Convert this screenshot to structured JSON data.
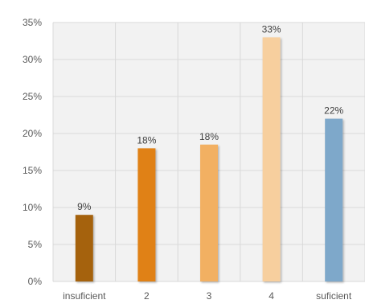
{
  "chart_data": {
    "type": "bar",
    "title": "",
    "xlabel": "",
    "ylabel": "",
    "categories": [
      "insuficient",
      "2",
      "3",
      "4",
      "suficient"
    ],
    "values": [
      9,
      18,
      18.5,
      33,
      22
    ],
    "data_labels": [
      "9%",
      "18%",
      "18%",
      "33%",
      "22%"
    ],
    "ylim": [
      0,
      35
    ],
    "yticks": [
      0,
      5,
      10,
      15,
      20,
      25,
      30,
      35
    ],
    "ytick_labels": [
      "0%",
      "5%",
      "10%",
      "15%",
      "20%",
      "25%",
      "30%",
      "35%"
    ],
    "grid": true,
    "legend": "none",
    "colors": [
      "#A5620F",
      "#E08119",
      "#F2B062",
      "#F7CF9E",
      "#7EA8CA"
    ],
    "plot_background": "#F2F2F2",
    "grid_color": "#D9D9D9"
  }
}
